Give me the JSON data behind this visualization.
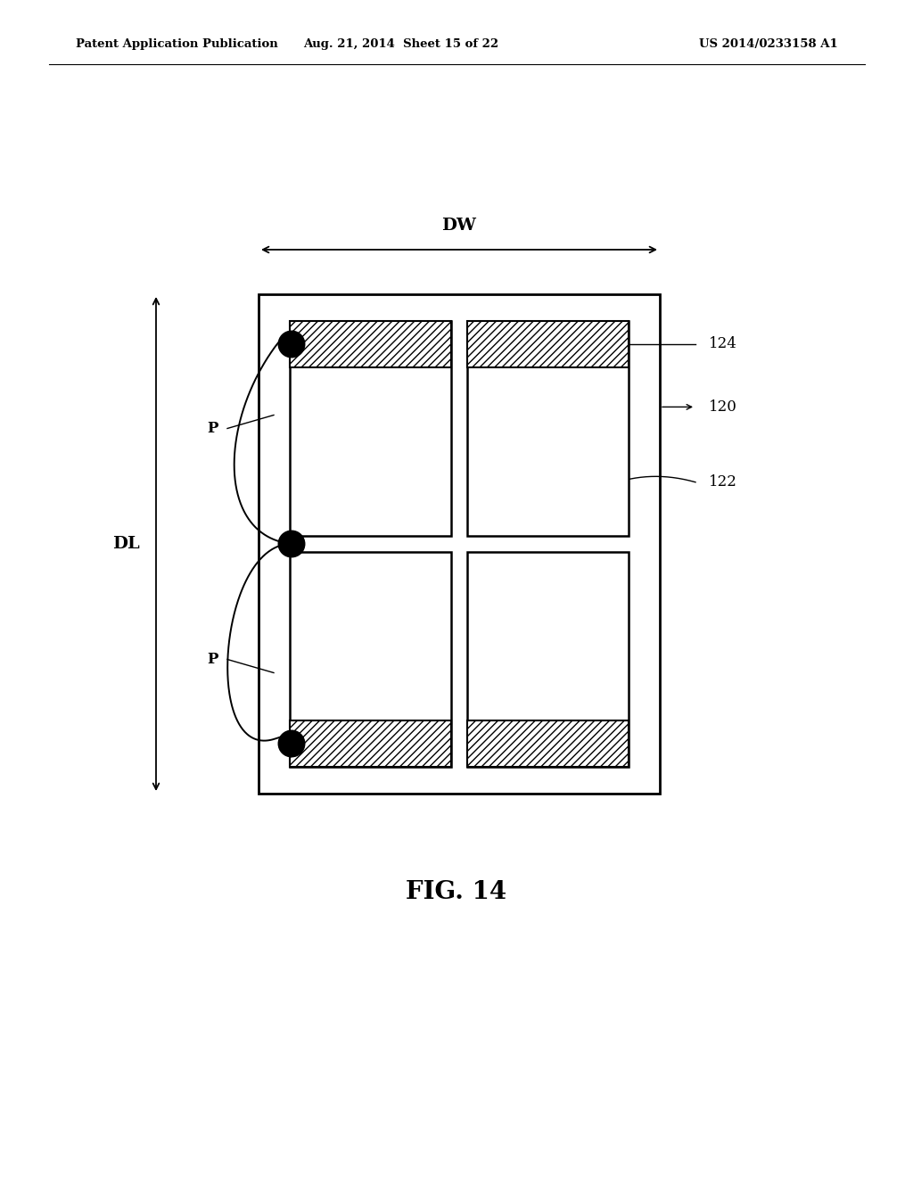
{
  "bg_color": "#ffffff",
  "header_left": "Patent Application Publication",
  "header_mid": "Aug. 21, 2014  Sheet 15 of 22",
  "header_right": "US 2014/0233158 A1",
  "fig_label": "FIG. 14",
  "label_124": "124",
  "label_120": "120",
  "label_122": "122"
}
